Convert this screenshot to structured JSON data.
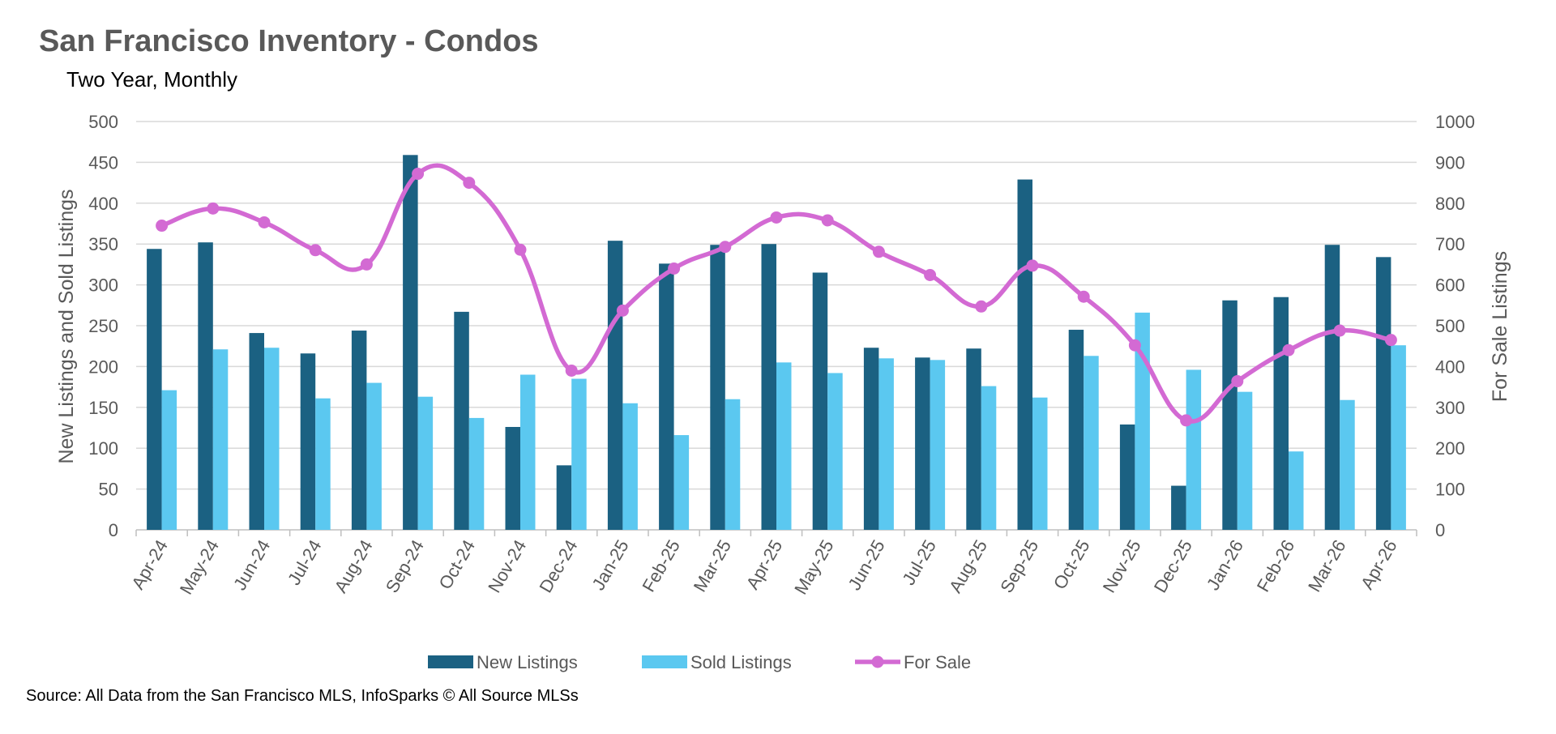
{
  "chart_data": {
    "type": "bar",
    "title": "San Francisco Inventory - Condos",
    "subtitle": "Two Year, Monthly",
    "source": "Source: All Data from the San Francisco MLS, InfoSparks © All Source MLSs",
    "categories": [
      "Apr-24",
      "May-24",
      "Jun-24",
      "Jul-24",
      "Aug-24",
      "Sep-24",
      "Oct-24",
      "Nov-24",
      "Dec-24",
      "Jan-25",
      "Feb-25",
      "Mar-25",
      "Apr-25",
      "May-25",
      "Jun-25",
      "Jul-25",
      "Aug-25",
      "Sep-25",
      "Oct-25",
      "Nov-25",
      "Dec-25",
      "Jan-26",
      "Feb-26",
      "Mar-26",
      "Apr-26"
    ],
    "series": [
      {
        "name": "New Listings",
        "type": "bar",
        "axis": "left",
        "color": "#1b6182",
        "values": [
          344,
          352,
          241,
          216,
          244,
          459,
          267,
          126,
          79,
          354,
          326,
          349,
          350,
          315,
          223,
          211,
          222,
          429,
          245,
          129,
          54,
          281,
          285,
          349,
          334
        ]
      },
      {
        "name": "Sold Listings",
        "type": "bar",
        "axis": "left",
        "color": "#5bc8f0",
        "values": [
          171,
          221,
          223,
          161,
          180,
          163,
          137,
          190,
          185,
          155,
          116,
          160,
          205,
          192,
          210,
          208,
          176,
          162,
          213,
          266,
          196,
          169,
          96,
          159,
          226
        ]
      },
      {
        "name": "For Sale",
        "type": "line",
        "axis": "right",
        "color": "#d36ad3",
        "values": [
          745,
          787,
          753,
          685,
          650,
          872,
          850,
          686,
          390,
          537,
          640,
          693,
          765,
          758,
          681,
          624,
          547,
          647,
          571,
          452,
          268,
          364,
          440,
          488,
          465
        ]
      }
    ],
    "ylabel": "New Listings and Sold Listings",
    "y2label": "For Sale Listings",
    "ylim": [
      0,
      500
    ],
    "y2lim": [
      0,
      1000
    ],
    "yticks": [
      "0",
      "50",
      "100",
      "150",
      "200",
      "250",
      "300",
      "350",
      "400",
      "450",
      "500"
    ],
    "y2ticks": [
      "0",
      "100",
      "200",
      "300",
      "400",
      "500",
      "600",
      "700",
      "800",
      "900",
      "1000"
    ],
    "grid": true,
    "legend_position": "bottom"
  }
}
